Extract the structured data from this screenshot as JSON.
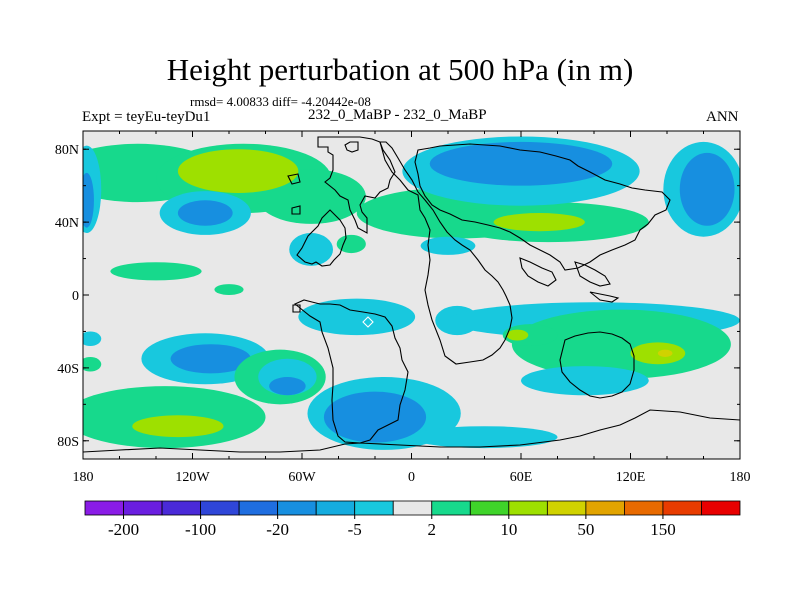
{
  "chart_data": {
    "type": "contour_map",
    "title": "Height perturbation at 500 hPa (in m)",
    "stats_line": "rmsd= 4.00833 diff= -4.20442e-08",
    "experiment_label": "Expt = teyEu-teyDu1",
    "case_label": "232_0_MaBP - 232_0_MaBP",
    "season": "ANN",
    "x_axis": {
      "range": [
        -180,
        180
      ],
      "ticks": [
        -180,
        -120,
        -60,
        0,
        60,
        120,
        180
      ],
      "tick_labels": [
        "180",
        "120W",
        "60W",
        "0",
        "60E",
        "120E",
        "180"
      ]
    },
    "y_axis": {
      "range": [
        -90,
        90
      ],
      "ticks": [
        80,
        40,
        0,
        -40,
        -80
      ],
      "tick_labels": [
        "80N",
        "40N",
        "0",
        "40S",
        "80S"
      ]
    },
    "colorbar": {
      "colors": [
        "#8a1ce6",
        "#6a1ee0",
        "#4a2ad8",
        "#2f46d8",
        "#1f6ee0",
        "#178fe0",
        "#15acdf",
        "#18c8de",
        "#e8e8e8",
        "#17d98c",
        "#3fd42a",
        "#9ee000",
        "#d0d200",
        "#e2a400",
        "#e86a00",
        "#e83c00",
        "#e80000"
      ],
      "tick_labels": [
        "-200",
        "-100",
        "-20",
        "-5",
        "2",
        "10",
        "50",
        "150"
      ]
    },
    "regions": [
      {
        "level": 10,
        "color": "#17d98c",
        "lon": -150,
        "lat": 67,
        "rlon": 45,
        "rlat": 16
      },
      {
        "level": 10,
        "color": "#17d98c",
        "lon": -92,
        "lat": 64,
        "rlon": 48,
        "rlat": 19
      },
      {
        "level": 10,
        "color": "#17d98c",
        "lon": -55,
        "lat": 54,
        "rlon": 30,
        "rlat": 15
      },
      {
        "level": 50,
        "color": "#9ee000",
        "lon": -95,
        "lat": 68,
        "rlon": 33,
        "rlat": 12
      },
      {
        "level": 10,
        "color": "#17d98c",
        "lon": 25,
        "lat": 45,
        "rlon": 55,
        "rlat": 14
      },
      {
        "level": 10,
        "color": "#17d98c",
        "lon": 75,
        "lat": 40,
        "rlon": 55,
        "rlat": 11
      },
      {
        "level": 50,
        "color": "#9ee000",
        "lon": 70,
        "lat": 40,
        "rlon": 25,
        "rlat": 5
      },
      {
        "level": -5,
        "color": "#18c8de",
        "lon": 60,
        "lat": 68,
        "rlon": 65,
        "rlat": 19
      },
      {
        "level": -20,
        "color": "#178fe0",
        "lon": 60,
        "lat": 72,
        "rlon": 50,
        "rlat": 12
      },
      {
        "level": -5,
        "color": "#18c8de",
        "lon": 160,
        "lat": 58,
        "rlon": 22,
        "rlat": 26
      },
      {
        "level": -20,
        "color": "#178fe0",
        "lon": 162,
        "lat": 58,
        "rlon": 15,
        "rlat": 20
      },
      {
        "level": -5,
        "color": "#18c8de",
        "lon": -178,
        "lat": 58,
        "rlon": 8,
        "rlat": 24
      },
      {
        "level": -20,
        "color": "#178fe0",
        "lon": -178,
        "lat": 52,
        "rlon": 4,
        "rlat": 15
      },
      {
        "level": -5,
        "color": "#18c8de",
        "lon": -113,
        "lat": 45,
        "rlon": 25,
        "rlat": 12
      },
      {
        "level": -20,
        "color": "#178fe0",
        "lon": -113,
        "lat": 45,
        "rlon": 15,
        "rlat": 7
      },
      {
        "level": -5,
        "color": "#18c8de",
        "lon": -55,
        "lat": 25,
        "rlon": 12,
        "rlat": 9
      },
      {
        "level": -5,
        "color": "#18c8de",
        "lon": 20,
        "lat": 27,
        "rlon": 15,
        "rlat": 5
      },
      {
        "level": 10,
        "color": "#17d98c",
        "lon": -33,
        "lat": 28,
        "rlon": 8,
        "rlat": 5
      },
      {
        "level": 10,
        "color": "#17d98c",
        "lon": -140,
        "lat": 13,
        "rlon": 25,
        "rlat": 5
      },
      {
        "level": 10,
        "color": "#17d98c",
        "lon": -100,
        "lat": 3,
        "rlon": 8,
        "rlat": 3
      },
      {
        "level": -5,
        "color": "#18c8de",
        "lon": -30,
        "lat": -12,
        "rlon": 32,
        "rlat": 10
      },
      {
        "level": -5,
        "color": "#18c8de",
        "lon": 25,
        "lat": -14,
        "rlon": 12,
        "rlat": 8
      },
      {
        "level": -5,
        "color": "#18c8de",
        "lon": 100,
        "lat": -14,
        "rlon": 80,
        "rlat": 10
      },
      {
        "level": 10,
        "color": "#17d98c",
        "lon": 115,
        "lat": -27,
        "rlon": 60,
        "rlat": 19
      },
      {
        "level": 50,
        "color": "#9ee000",
        "lon": 135,
        "lat": -32,
        "rlon": 15,
        "rlat": 6
      },
      {
        "level": 50,
        "color": "#d0d200",
        "lon": 139,
        "lat": -32,
        "rlon": 4,
        "rlat": 2
      },
      {
        "level": 10,
        "color": "#17d98c",
        "lon": 65,
        "lat": -22,
        "rlon": 15,
        "rlat": 6
      },
      {
        "level": 50,
        "color": "#9ee000",
        "lon": 58,
        "lat": -22,
        "rlon": 6,
        "rlat": 3
      },
      {
        "level": -5,
        "color": "#18c8de",
        "lon": 95,
        "lat": -47,
        "rlon": 35,
        "rlat": 8
      },
      {
        "level": -5,
        "color": "#18c8de",
        "lon": -176,
        "lat": -24,
        "rlon": 6,
        "rlat": 4
      },
      {
        "level": 10,
        "color": "#17d98c",
        "lon": -176,
        "lat": -38,
        "rlon": 6,
        "rlat": 4
      },
      {
        "level": -5,
        "color": "#18c8de",
        "lon": -113,
        "lat": -35,
        "rlon": 35,
        "rlat": 14
      },
      {
        "level": -20,
        "color": "#178fe0",
        "lon": -110,
        "lat": -35,
        "rlon": 22,
        "rlat": 8
      },
      {
        "level": 10,
        "color": "#17d98c",
        "lon": -135,
        "lat": -67,
        "rlon": 55,
        "rlat": 17
      },
      {
        "level": 50,
        "color": "#9ee000",
        "lon": -128,
        "lat": -72,
        "rlon": 25,
        "rlat": 6
      },
      {
        "level": 10,
        "color": "#17d98c",
        "lon": -72,
        "lat": -45,
        "rlon": 25,
        "rlat": 15
      },
      {
        "level": -5,
        "color": "#18c8de",
        "lon": -68,
        "lat": -45,
        "rlon": 16,
        "rlat": 10
      },
      {
        "level": -20,
        "color": "#178fe0",
        "lon": -68,
        "lat": -50,
        "rlon": 10,
        "rlat": 5
      },
      {
        "level": -5,
        "color": "#18c8de",
        "lon": -15,
        "lat": -65,
        "rlon": 42,
        "rlat": 20
      },
      {
        "level": -20,
        "color": "#178fe0",
        "lon": -20,
        "lat": -67,
        "rlon": 28,
        "rlat": 14
      },
      {
        "level": -5,
        "color": "#18c8de",
        "lon": 40,
        "lat": -78,
        "rlon": 40,
        "rlat": 6
      }
    ]
  }
}
